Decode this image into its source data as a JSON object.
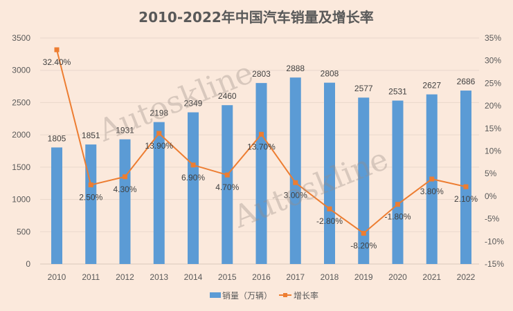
{
  "chart_data": {
    "type": "bar+line",
    "title": "2010-2022年中国汽车销量及增长率",
    "categories": [
      "2010",
      "2011",
      "2012",
      "2013",
      "2014",
      "2015",
      "2016",
      "2017",
      "2018",
      "2019",
      "2020",
      "2021",
      "2022"
    ],
    "series": [
      {
        "name": "销量（万辆）",
        "type": "bar",
        "axis": "left",
        "color": "#5b9bd5",
        "values": [
          1805,
          1851,
          1931,
          2198,
          2349,
          2460,
          2803,
          2888,
          2808,
          2577,
          2531,
          2627,
          2686
        ],
        "labels": [
          "1805",
          "1851",
          "1931",
          "2198",
          "2349",
          "2460",
          "2803",
          "2888",
          "2808",
          "2577",
          "2531",
          "2627",
          "2686"
        ]
      },
      {
        "name": "增长率",
        "type": "line",
        "axis": "right",
        "color": "#ed7d31",
        "values": [
          32.4,
          2.5,
          4.3,
          13.9,
          6.9,
          4.7,
          13.7,
          3.0,
          -2.8,
          -8.2,
          -1.8,
          3.8,
          2.1
        ],
        "labels": [
          "32.40%",
          "2.50%",
          "4.30%",
          "13.90%",
          "6.90%",
          "4.70%",
          "13.70%",
          "3.00%",
          "-2.80%",
          "-8.20%",
          "-1.80%",
          "3.80%",
          "2.10%"
        ]
      }
    ],
    "y_left": {
      "range": [
        0,
        3500
      ],
      "ticks": [
        "0",
        "500",
        "1000",
        "1500",
        "2000",
        "2500",
        "3000",
        "3500"
      ]
    },
    "y_right": {
      "range": [
        -15,
        35
      ],
      "ticks": [
        "-15%",
        "-10%",
        "-5%",
        "0%",
        "5%",
        "10%",
        "15%",
        "20%",
        "25%",
        "30%",
        "35%"
      ]
    },
    "grid": true,
    "legend": "bottom",
    "watermark": "Autoskline"
  }
}
